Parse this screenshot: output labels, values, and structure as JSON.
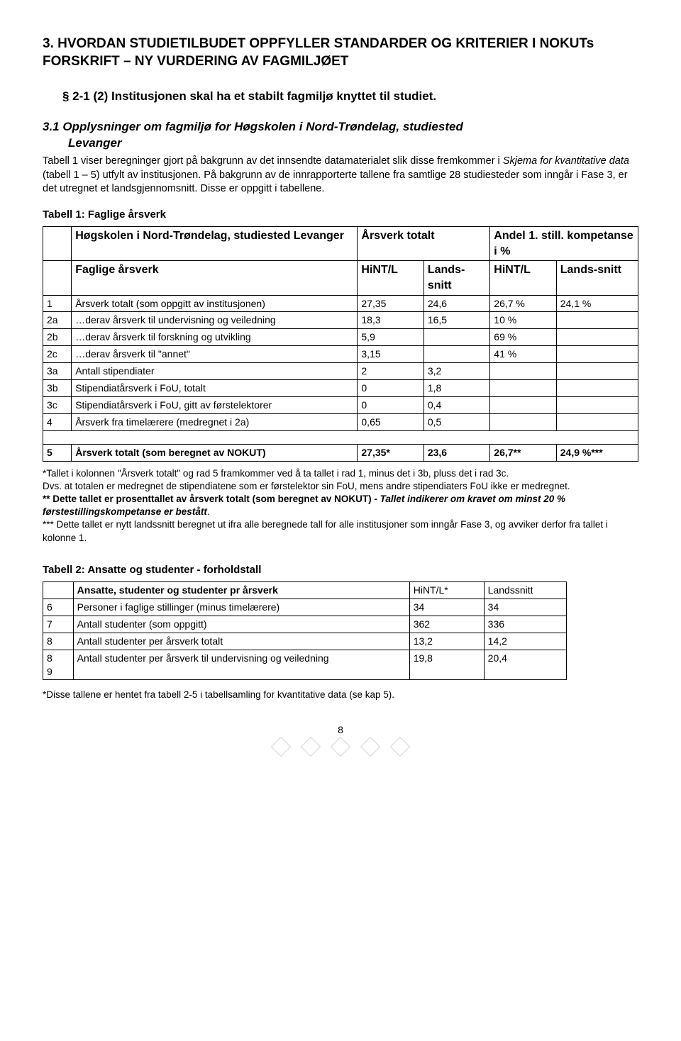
{
  "headings": {
    "h1": "3. HVORDAN STUDIETILBUDET OPPFYLLER STANDARDER OG KRITERIER I NOKUTs FORSKRIFT – NY VURDERING AV FAGMILJØET",
    "h2": "§ 2-1 (2) Institusjonen skal ha et stabilt fagmiljø knyttet til studiet.",
    "h3_a": "3.1 Opplysninger om fagmiljø for Høgskolen i Nord-Trøndelag, studiested",
    "h3_b": "Levanger"
  },
  "intro": "Tabell 1 viser beregninger gjort på bakgrunn av det innsendte datamaterialet slik disse fremkommer i Skjema for kvantitative data (tabell 1 – 5) utfylt av institusjonen. På bakgrunn av de innrapporterte tallene fra samtlige 28 studiesteder som inngår i Fase 3, er det utregnet et landsgjennomsnitt. Disse er oppgitt i tabellene.",
  "intro_ital_phrase": "Skjema for kvantitative data",
  "table1": {
    "title": "Tabell 1: Faglige årsverk",
    "h_institution": "Høgskolen i Nord-Trøndelag, studiested Levanger",
    "h_totalt": "Årsverk totalt",
    "h_andel": "Andel 1. still. kompetanse i %",
    "h_faglige": "Faglige årsverk",
    "h_hint": "HiNT/L",
    "h_landssnitt": "Lands-snitt",
    "h_hint2": "HiNT/L",
    "h_landssnitt2": "Lands-snitt",
    "rows": [
      {
        "n": "1",
        "label": "Årsverk totalt (som oppgitt av institusjonen)",
        "c1": "27,35",
        "c2": "24,6",
        "c3": "26,7 %",
        "c4": "24,1 %"
      },
      {
        "n": "2a",
        "label": "…derav årsverk til undervisning og veiledning",
        "c1": "18,3",
        "c2": "16,5",
        "c3": "10 %",
        "c4": ""
      },
      {
        "n": "2b",
        "label": "…derav årsverk til forskning og utvikling",
        "c1": "5,9",
        "c2": "",
        "c3": "69 %",
        "c4": ""
      },
      {
        "n": "2c",
        "label": "…derav årsverk til \"annet\"",
        "c1": "3,15",
        "c2": "",
        "c3": "41 %",
        "c4": ""
      },
      {
        "n": "3a",
        "label": "Antall stipendiater",
        "c1": "2",
        "c2": "3,2",
        "c3": "",
        "c4": ""
      },
      {
        "n": "3b",
        "label": "Stipendiatårsverk i FoU, totalt",
        "c1": "0",
        "c2": "1,8",
        "c3": "",
        "c4": ""
      },
      {
        "n": "3c",
        "label": "Stipendiatårsverk i FoU, gitt av førstelektorer",
        "c1": "0",
        "c2": "0,4",
        "c3": "",
        "c4": ""
      },
      {
        "n": "4",
        "label": "Årsverk fra timelærere (medregnet i 2a)",
        "c1": "0,65",
        "c2": "0,5",
        "c3": "",
        "c4": ""
      }
    ],
    "sumrow": {
      "n": "5",
      "label": "Årsverk totalt (som beregnet av NOKUT)",
      "c1": "27,35*",
      "c2": "23,6",
      "c3": "26,7**",
      "c4": "24,9 %***"
    }
  },
  "footnotes1": {
    "l1": "*Tallet i kolonnen \"Årsverk totalt\" og rad 5 framkommer ved å ta tallet i rad 1, minus det i 3b, pluss det i rad 3c.",
    "l2": "Dvs. at totalen er medregnet de stipendiatene som er førstelektor sin FoU, mens andre stipendiaters FoU ikke er medregnet.",
    "l3a": "** Dette tallet er prosenttallet av årsverk totalt (som beregnet av NOKUT) - ",
    "l3b": "Tallet indikerer om kravet om minst 20 % førstestillingskompetanse er bestått",
    "l3c": ".",
    "l4": "*** Dette tallet er nytt landssnitt beregnet ut ifra alle beregnede tall for alle institusjoner som inngår Fase 3, og avviker derfor fra tallet i kolonne 1."
  },
  "table2": {
    "title": "Tabell 2: Ansatte og studenter - forholdstall",
    "h_label": "Ansatte, studenter og studenter pr årsverk",
    "h_hint": "HiNT/L*",
    "h_land": "Landssnitt",
    "rows": [
      {
        "n": "6",
        "label": "Personer i faglige stillinger (minus timelærere)",
        "c1": "34",
        "c2": "34"
      },
      {
        "n": "7",
        "label": "Antall studenter (som oppgitt)",
        "c1": "362",
        "c2": "336"
      },
      {
        "n": "8",
        "label": "Antall studenter per årsverk totalt",
        "c1": "13,2",
        "c2": "14,2"
      },
      {
        "n": "89",
        "label": "Antall studenter per årsverk til undervisning og veiledning",
        "c1": "19,8",
        "c2": "20,4"
      }
    ]
  },
  "footnotes2": "*Disse tallene er hentet fra tabell 2-5 i tabellsamling for kvantitative data (se kap 5).",
  "pagenum": "8",
  "colors": {
    "text": "#000000",
    "border": "#000000",
    "footerbox": "#d5d5d5"
  }
}
